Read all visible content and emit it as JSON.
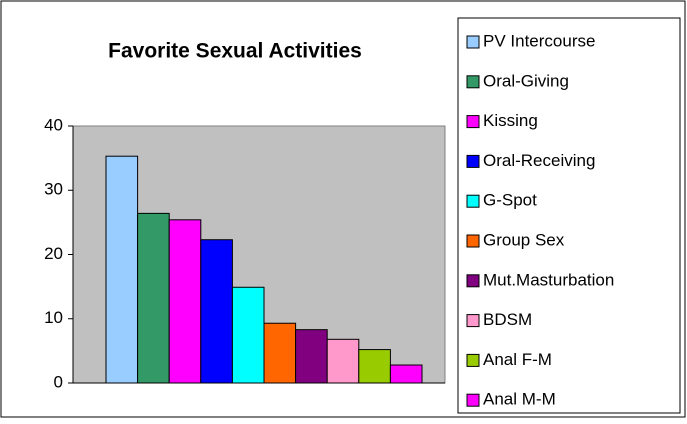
{
  "chart_data": {
    "type": "bar",
    "title": "Favorite Sexual Activities",
    "series": [
      {
        "name": "PV Intercourse",
        "color": "#99ccff",
        "values": [
          35.3
        ]
      },
      {
        "name": "Oral-Giving",
        "color": "#339966",
        "values": [
          26.4
        ]
      },
      {
        "name": "Kissing",
        "color": "#ff00ff",
        "values": [
          25.4
        ]
      },
      {
        "name": "Oral-Receiving",
        "color": "#0000ff",
        "values": [
          22.3
        ]
      },
      {
        "name": "G-Spot",
        "color": "#00ffff",
        "values": [
          14.9
        ]
      },
      {
        "name": "Group Sex",
        "color": "#ff6600",
        "values": [
          9.3
        ]
      },
      {
        "name": "Mut.Masturbation",
        "color": "#800080",
        "values": [
          8.3
        ]
      },
      {
        "name": "BDSM",
        "color": "#ff99cc",
        "values": [
          6.8
        ]
      },
      {
        "name": "Anal F-M",
        "color": "#99cc00",
        "values": [
          5.2
        ]
      },
      {
        "name": "Anal M-M",
        "color": "#ff00ff",
        "values": [
          2.8
        ]
      }
    ],
    "ylim": [
      0,
      40
    ],
    "yticks": [
      0,
      10,
      20,
      30,
      40
    ],
    "grid": false,
    "legend": "right"
  }
}
